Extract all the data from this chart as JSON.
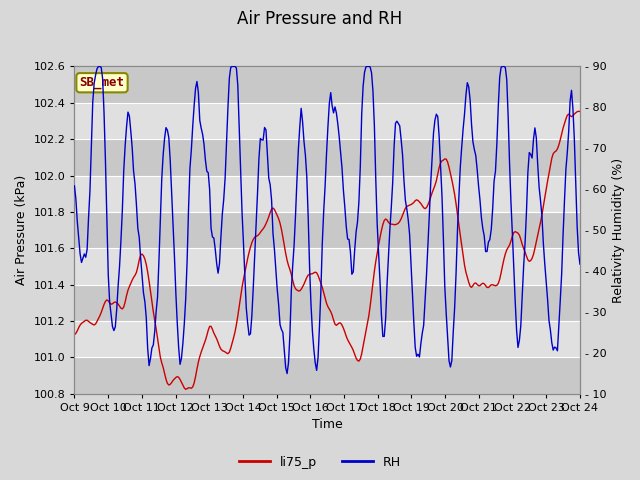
{
  "title": "Air Pressure and RH",
  "xlabel": "Time",
  "ylabel_left": "Air Pressure (kPa)",
  "ylabel_right": "Relativity Humidity (%)",
  "station_label": "SB_met",
  "legend_labels": [
    "li75_p",
    "RH"
  ],
  "ylim_left": [
    100.8,
    102.6
  ],
  "ylim_right": [
    10,
    90
  ],
  "yticks_left": [
    100.8,
    101.0,
    101.2,
    101.4,
    101.6,
    101.8,
    102.0,
    102.2,
    102.4,
    102.6
  ],
  "yticks_right": [
    10,
    20,
    30,
    40,
    50,
    60,
    70,
    80,
    90
  ],
  "bg_color": "#d8d8d8",
  "plot_bg_color": "#d8d8d8",
  "band_colors": [
    "#c8c8c8",
    "#e0e0e0"
  ],
  "grid_color": "#ffffff",
  "line_color_pressure": "#cc0000",
  "line_color_rh": "#0000cc",
  "line_width": 1.0,
  "title_fontsize": 12,
  "label_fontsize": 9,
  "tick_fontsize": 8,
  "legend_fontsize": 9,
  "station_box_facecolor": "#ffffcc",
  "station_box_edgecolor": "#888800",
  "station_text_color": "#880000"
}
